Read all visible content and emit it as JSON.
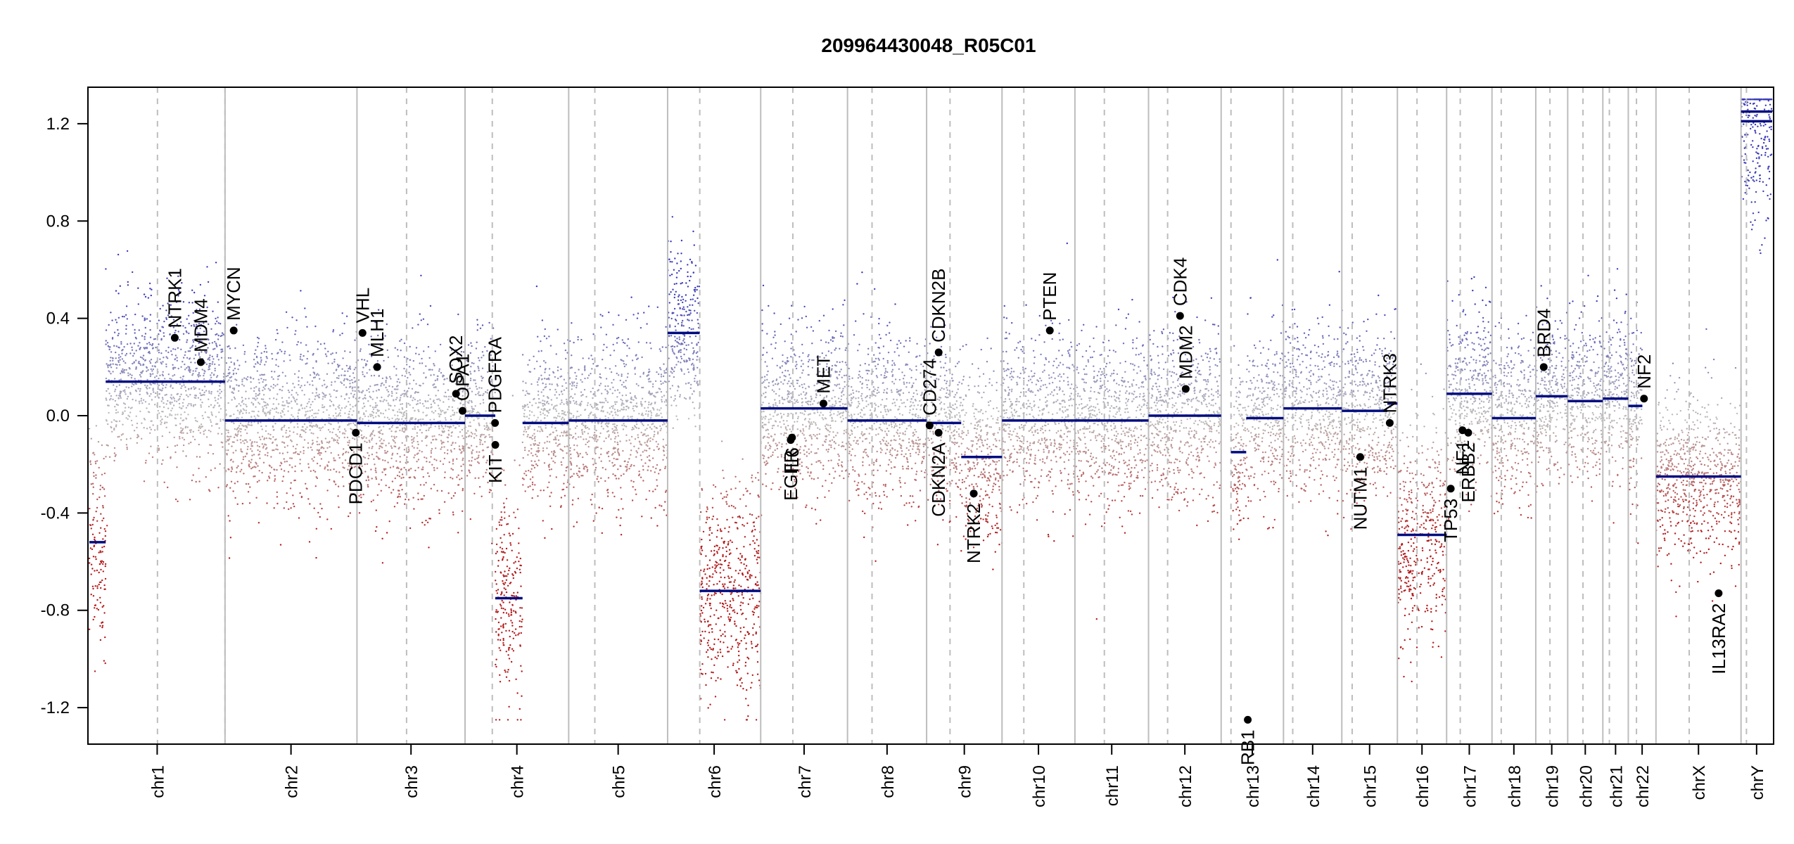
{
  "chart_data": {
    "type": "scatter",
    "title": "209964430048_R05C01",
    "xlabel": "",
    "ylabel": "",
    "ylim": [
      -1.35,
      1.35
    ],
    "yticks": [
      1.2,
      0.8,
      0.4,
      0.0,
      -0.4,
      -0.8,
      -1.2
    ],
    "ytick_labels": [
      "1.2",
      "0.8",
      "0.4",
      "0.0",
      "-0.4",
      "-0.8",
      "-1.2"
    ],
    "grid": false,
    "legend": "none",
    "colors": {
      "gain": "#3a3ab8",
      "loss": "#b31a1a",
      "neutral": "#bdbdbd",
      "segment": "#000c80",
      "frame": "#000000",
      "chrom_line": "#bdbdbd"
    },
    "chromosomes": [
      {
        "name": "chr1",
        "start": 0.0,
        "end": 248.956,
        "center": 125.0,
        "label": "chr1"
      },
      {
        "name": "chr2",
        "start": 248.956,
        "end": 491.149,
        "center": 248.956,
        "label": "chr2"
      },
      {
        "name": "chr3",
        "start": 491.149,
        "end": 689.444,
        "center": 582.149,
        "label": "chr3"
      },
      {
        "name": "chr4",
        "start": 689.444,
        "end": 879.658,
        "center": 739.444,
        "label": "chr4"
      },
      {
        "name": "chr5",
        "start": 879.658,
        "end": 1061.196,
        "center": 927.658,
        "label": "chr5"
      },
      {
        "name": "chr6",
        "start": 1061.196,
        "end": 1232.001,
        "center": 1120.196,
        "label": "chr6"
      },
      {
        "name": "chr7",
        "start": 1232.001,
        "end": 1391.347,
        "center": 1291.001,
        "label": "chr7"
      },
      {
        "name": "chr8",
        "start": 1391.347,
        "end": 1536.485,
        "center": 1436.347,
        "label": "chr8"
      },
      {
        "name": "chr9",
        "start": 1536.485,
        "end": 1674.88,
        "center": 1579.485,
        "label": "chr9"
      },
      {
        "name": "chr10",
        "start": 1674.88,
        "end": 1808.677,
        "center": 1714.88,
        "label": "chr10"
      },
      {
        "name": "chr11",
        "start": 1808.677,
        "end": 1943.764,
        "center": 1862.677,
        "label": "chr11"
      },
      {
        "name": "chr12",
        "start": 1943.764,
        "end": 2077.039,
        "center": 1978.764,
        "label": "chr12"
      },
      {
        "name": "chr13",
        "start": 2077.039,
        "end": 2191.403,
        "center": 2095.039,
        "label": "chr13"
      },
      {
        "name": "chr14",
        "start": 2191.403,
        "end": 2298.447,
        "center": 2208.403,
        "label": "chr14"
      },
      {
        "name": "chr15",
        "start": 2298.447,
        "end": 2400.438,
        "center": 2317.447,
        "label": "chr15"
      },
      {
        "name": "chr16",
        "start": 2400.438,
        "end": 2490.776,
        "center": 2436.438,
        "label": "chr16"
      },
      {
        "name": "chr17",
        "start": 2490.776,
        "end": 2574.033,
        "center": 2515.776,
        "label": "chr17"
      },
      {
        "name": "chr18",
        "start": 2574.033,
        "end": 2654.406,
        "center": 2591.033,
        "label": "chr18"
      },
      {
        "name": "chr19",
        "start": 2654.406,
        "end": 2713.023,
        "center": 2680.406,
        "label": "chr19"
      },
      {
        "name": "chr20",
        "start": 2713.023,
        "end": 2777.467,
        "center": 2741.023,
        "label": "chr20"
      },
      {
        "name": "chr21",
        "start": 2777.467,
        "end": 2824.177,
        "center": 2789.467,
        "label": "chr21"
      },
      {
        "name": "chr22",
        "start": 2824.177,
        "end": 2874.995,
        "center": 2839.177,
        "label": "chr22"
      },
      {
        "name": "chrX",
        "start": 2874.995,
        "end": 3031.036,
        "center": 2935.995,
        "label": "chrX"
      },
      {
        "name": "chrY",
        "start": 3031.036,
        "end": 3088.264,
        "center": 3041.036,
        "label": "chrY"
      }
    ],
    "segments": [
      {
        "x": [
          0,
          30
        ],
        "y": -0.52
      },
      {
        "x": [
          30,
          248.956
        ],
        "y": 0.14
      },
      {
        "x": [
          248.956,
          491.149
        ],
        "y": -0.02
      },
      {
        "x": [
          491.149,
          689.444
        ],
        "y": -0.03
      },
      {
        "x": [
          689.444,
          745
        ],
        "y": 0.0
      },
      {
        "x": [
          745,
          795
        ],
        "y": -0.75
      },
      {
        "x": [
          795,
          879.658
        ],
        "y": -0.03
      },
      {
        "x": [
          879.658,
          1061.196
        ],
        "y": -0.02
      },
      {
        "x": [
          1061.196,
          1120
        ],
        "y": 0.34
      },
      {
        "x": [
          1120,
          1232.001
        ],
        "y": -0.72
      },
      {
        "x": [
          1232.001,
          1391.347
        ],
        "y": 0.03
      },
      {
        "x": [
          1391.347,
          1536.485
        ],
        "y": -0.02
      },
      {
        "x": [
          1536.485,
          1600
        ],
        "y": -0.03
      },
      {
        "x": [
          1600,
          1674.88
        ],
        "y": -0.17
      },
      {
        "x": [
          1674.88,
          1808.677
        ],
        "y": -0.02
      },
      {
        "x": [
          1808.677,
          1943.764
        ],
        "y": -0.02
      },
      {
        "x": [
          1943.764,
          2077.039
        ],
        "y": 0.0
      },
      {
        "x": [
          2095,
          2123
        ],
        "y": -0.15
      },
      {
        "x": [
          2123,
          2191.403
        ],
        "y": -0.01
      },
      {
        "x": [
          2191.403,
          2298.447
        ],
        "y": 0.03
      },
      {
        "x": [
          2298.447,
          2382
        ],
        "y": 0.02
      },
      {
        "x": [
          2382,
          2400.438
        ],
        "y": 0.05
      },
      {
        "x": [
          2400.438,
          2490.776
        ],
        "y": -0.49
      },
      {
        "x": [
          2490.776,
          2574.033
        ],
        "y": 0.09
      },
      {
        "x": [
          2574.033,
          2654.406
        ],
        "y": -0.01
      },
      {
        "x": [
          2654.406,
          2713.023
        ],
        "y": 0.08
      },
      {
        "x": [
          2713.023,
          2777.467
        ],
        "y": 0.06
      },
      {
        "x": [
          2777.467,
          2824.177
        ],
        "y": 0.07
      },
      {
        "x": [
          2824.177,
          2850
        ],
        "y": 0.04
      },
      {
        "x": [
          2874.995,
          3031.036
        ],
        "y": -0.25
      },
      {
        "x": [
          3031.036,
          3088.264
        ],
        "y": 1.21
      },
      {
        "x": [
          3031.036,
          3088.264
        ],
        "y": 1.25
      }
    ],
    "genes": [
      {
        "name": "NTRK1",
        "x": 156.8,
        "y": 0.32
      },
      {
        "name": "MDM4",
        "x": 204.5,
        "y": 0.22
      },
      {
        "name": "MYCN",
        "x": 264.9,
        "y": 0.35
      },
      {
        "name": "PDCD1",
        "x": 489.0,
        "y": -0.07
      },
      {
        "name": "VHL",
        "x": 501.3,
        "y": 0.34
      },
      {
        "name": "MLH1",
        "x": 528.2,
        "y": 0.2
      },
      {
        "name": "SOX2",
        "x": 672.9,
        "y": 0.09
      },
      {
        "name": "OPA1",
        "x": 684.9,
        "y": 0.02
      },
      {
        "name": "PDGFRA",
        "x": 744.5,
        "y": -0.03
      },
      {
        "name": "KIT",
        "x": 745.0,
        "y": -0.12
      },
      {
        "name": "EGFR",
        "x": 1287.1,
        "y": -0.1
      },
      {
        "name": "IL6",
        "x": 1289.5,
        "y": -0.09
      },
      {
        "name": "MET",
        "x": 1347.2,
        "y": 0.05
      },
      {
        "name": "CD274",
        "x": 1542.0,
        "y": -0.04
      },
      {
        "name": "CDKN2A",
        "x": 1558.5,
        "y": -0.07
      },
      {
        "name": "CDKN2B",
        "x": 1558.6,
        "y": 0.26
      },
      {
        "name": "NTRK2",
        "x": 1623.0,
        "y": -0.32
      },
      {
        "name": "PTEN",
        "x": 1762.6,
        "y": 0.35
      },
      {
        "name": "CDK4",
        "x": 2001.6,
        "y": 0.41
      },
      {
        "name": "MDM2",
        "x": 2012.0,
        "y": 0.11
      },
      {
        "name": "RB1",
        "x": 2125.9,
        "y": -1.25
      },
      {
        "name": "NUTM1",
        "x": 2332.2,
        "y": -0.17
      },
      {
        "name": "NTRK3",
        "x": 2386.4,
        "y": -0.03
      },
      {
        "name": "TP53",
        "x": 2498.4,
        "y": -0.3
      },
      {
        "name": "NF1",
        "x": 2520.0,
        "y": -0.06
      },
      {
        "name": "ERBB2",
        "x": 2530.5,
        "y": -0.07
      },
      {
        "name": "BRD4",
        "x": 2669.0,
        "y": 0.2
      },
      {
        "name": "NF2",
        "x": 2853.0,
        "y": 0.07
      },
      {
        "name": "IL13RA2",
        "x": 2990.0,
        "y": -0.73
      }
    ]
  }
}
